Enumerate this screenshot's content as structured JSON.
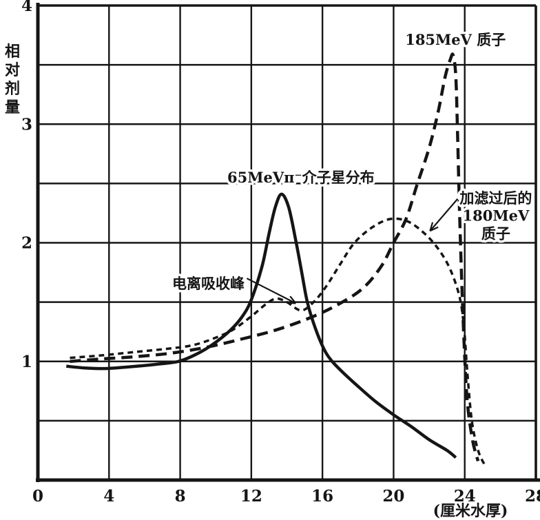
{
  "figure": {
    "background": "#ffffff",
    "ink_color": "#151515"
  },
  "chart_data": {
    "type": "line",
    "title": "",
    "xlabel": "(厘米水厚)",
    "ylabel": "相对剂量",
    "ylabel_chars": [
      "相",
      "对",
      "剂",
      "量"
    ],
    "xlim": [
      0,
      28
    ],
    "ylim": [
      0,
      4
    ],
    "x_ticks": [
      0,
      4,
      8,
      12,
      16,
      20,
      24,
      28
    ],
    "y_ticks": [
      1,
      2,
      3,
      4
    ],
    "x_grid_step": 4,
    "y_grid_step": 0.5,
    "grid": true,
    "legend": "labels drawn inside plot",
    "series": [
      {
        "id": "pion-65mev-star",
        "name": "65MeV π⁻ 介子星分布",
        "style": "solid",
        "stroke_width": 4.5,
        "dash": "",
        "points": [
          [
            1.6,
            0.96
          ],
          [
            2.6,
            0.945
          ],
          [
            3.8,
            0.94
          ],
          [
            5.2,
            0.955
          ],
          [
            6.6,
            0.975
          ],
          [
            7.9,
            1.0
          ],
          [
            8.9,
            1.06
          ],
          [
            9.8,
            1.14
          ],
          [
            10.8,
            1.26
          ],
          [
            11.5,
            1.38
          ],
          [
            12.0,
            1.52
          ],
          [
            12.6,
            1.8
          ],
          [
            13.0,
            2.08
          ],
          [
            13.35,
            2.3
          ],
          [
            13.7,
            2.41
          ],
          [
            14.1,
            2.3
          ],
          [
            14.5,
            2.02
          ],
          [
            14.85,
            1.74
          ],
          [
            15.15,
            1.5
          ],
          [
            15.6,
            1.28
          ],
          [
            16.1,
            1.1
          ],
          [
            16.55,
            1.0
          ],
          [
            17.2,
            0.9
          ],
          [
            18.0,
            0.79
          ],
          [
            19.0,
            0.66
          ],
          [
            20.0,
            0.55
          ],
          [
            21.0,
            0.45
          ],
          [
            22.0,
            0.34
          ],
          [
            23.0,
            0.25
          ],
          [
            23.5,
            0.19
          ]
        ]
      },
      {
        "id": "proton-185mev",
        "name": "185MeV 质子",
        "style": "long-dash",
        "stroke_width": 4.5,
        "dash": "16 9",
        "points": [
          [
            1.8,
            1.0
          ],
          [
            3.5,
            1.02
          ],
          [
            5.5,
            1.04
          ],
          [
            7.5,
            1.07
          ],
          [
            9.5,
            1.12
          ],
          [
            11.5,
            1.19
          ],
          [
            13.5,
            1.27
          ],
          [
            15.5,
            1.38
          ],
          [
            17.0,
            1.49
          ],
          [
            18.3,
            1.62
          ],
          [
            19.3,
            1.8
          ],
          [
            20.0,
            2.0
          ],
          [
            20.7,
            2.2
          ],
          [
            21.3,
            2.48
          ],
          [
            22.0,
            2.8
          ],
          [
            22.5,
            3.1
          ],
          [
            22.9,
            3.4
          ],
          [
            23.2,
            3.55
          ],
          [
            23.35,
            3.58
          ],
          [
            23.5,
            3.4
          ],
          [
            23.6,
            2.9
          ],
          [
            23.72,
            2.2
          ],
          [
            23.85,
            1.6
          ],
          [
            23.98,
            1.1
          ],
          [
            24.15,
            0.65
          ],
          [
            24.45,
            0.33
          ],
          [
            24.75,
            0.16
          ]
        ]
      },
      {
        "id": "proton-180mev-filtered",
        "name": "加滤过后的 180MeV 质子",
        "style": "fine-dash",
        "stroke_width": 3.5,
        "dash": "8 6",
        "points": [
          [
            1.8,
            1.03
          ],
          [
            3.5,
            1.05
          ],
          [
            5.5,
            1.08
          ],
          [
            7.5,
            1.11
          ],
          [
            8.8,
            1.14
          ],
          [
            10.0,
            1.2
          ],
          [
            11.0,
            1.27
          ],
          [
            12.0,
            1.38
          ],
          [
            12.8,
            1.48
          ],
          [
            13.4,
            1.53
          ],
          [
            14.0,
            1.5
          ],
          [
            14.8,
            1.43
          ],
          [
            15.5,
            1.5
          ],
          [
            16.2,
            1.63
          ],
          [
            17.0,
            1.82
          ],
          [
            17.8,
            2.0
          ],
          [
            18.8,
            2.13
          ],
          [
            19.8,
            2.2
          ],
          [
            20.8,
            2.18
          ],
          [
            21.8,
            2.07
          ],
          [
            22.6,
            1.93
          ],
          [
            23.2,
            1.77
          ],
          [
            23.7,
            1.55
          ],
          [
            23.95,
            1.3
          ],
          [
            24.15,
            0.9
          ],
          [
            24.4,
            0.5
          ],
          [
            24.75,
            0.25
          ],
          [
            25.15,
            0.12
          ]
        ]
      }
    ],
    "annotations": [
      {
        "id": "label-proton-185",
        "text": "185MeV 质子",
        "x": 20.65,
        "y": 3.71,
        "anchor": "start",
        "font_size": 21
      },
      {
        "id": "label-pion-65",
        "text": "65MeVπ⁻介子星分布",
        "x": 10.65,
        "y": 2.55,
        "anchor": "start",
        "font_size": 21
      },
      {
        "id": "label-ionization-peak",
        "text": "电离吸收峰",
        "x": 11.62,
        "y": 1.655,
        "anchor": "end",
        "font_size": 21,
        "arrow": {
          "from_x": 11.75,
          "from_y": 1.7,
          "to_x": 14.5,
          "to_y": 1.49
        }
      },
      {
        "id": "label-proton-180-filtered",
        "lines": [
          "加滤过后的",
          "180MeV",
          "质子"
        ],
        "x": 25.75,
        "y": 2.375,
        "line_step": 0.15,
        "anchor": "middle",
        "font_size": 21,
        "arrow": {
          "from_x": 23.6,
          "from_y": 2.37,
          "to_x": 22.05,
          "to_y": 2.1
        }
      }
    ]
  }
}
